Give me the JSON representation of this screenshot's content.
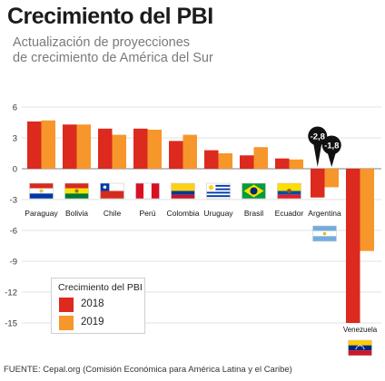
{
  "title": "Crecimiento del PBI",
  "subtitle_lines": [
    "Actualización de proyecciones",
    "de crecimiento de América del Sur"
  ],
  "source": "FUENTE: Cepal.org (Comisión Económica para América Latina y el Caribe)",
  "legend": {
    "title": "Crecimiento del PBI",
    "items": [
      {
        "label": "2018",
        "color": "#dc2a1e"
      },
      {
        "label": "2019",
        "color": "#f7962a"
      }
    ]
  },
  "chart_data": {
    "type": "bar",
    "categories": [
      "Paraguay",
      "Bolivia",
      "Chile",
      "Perú",
      "Colombia",
      "Uruguay",
      "Brasil",
      "Ecuador",
      "Argentina",
      "Venezuela"
    ],
    "series": [
      {
        "name": "2018",
        "values": [
          4.6,
          4.3,
          3.9,
          3.9,
          2.7,
          1.8,
          1.3,
          1.0,
          -2.8,
          -15.0
        ]
      },
      {
        "name": "2019",
        "values": [
          4.7,
          4.3,
          3.3,
          3.8,
          3.3,
          1.5,
          2.1,
          0.9,
          -1.8,
          -8.0
        ]
      }
    ],
    "ylim": [
      -15,
      6
    ],
    "yticks": [
      "6",
      "3",
      "0",
      "-3",
      "-6",
      "-9",
      "-12",
      "-15"
    ],
    "callouts": [
      {
        "category": "Argentina",
        "series": "2018",
        "label": "-2,8"
      },
      {
        "category": "Argentina",
        "series": "2019",
        "label": "-1,8"
      }
    ],
    "flags": [
      {
        "country": "Paraguay",
        "icon": "paraguay-flag-icon"
      },
      {
        "country": "Bolivia",
        "icon": "bolivia-flag-icon"
      },
      {
        "country": "Chile",
        "icon": "chile-flag-icon"
      },
      {
        "country": "Perú",
        "icon": "peru-flag-icon"
      },
      {
        "country": "Colombia",
        "icon": "colombia-flag-icon"
      },
      {
        "country": "Uruguay",
        "icon": "uruguay-flag-icon"
      },
      {
        "country": "Brasil",
        "icon": "brasil-flag-icon"
      },
      {
        "country": "Ecuador",
        "icon": "ecuador-flag-icon"
      },
      {
        "country": "Argentina",
        "icon": "argentina-flag-icon"
      },
      {
        "country": "Venezuela",
        "icon": "venezuela-flag-icon"
      }
    ],
    "grid": true
  }
}
